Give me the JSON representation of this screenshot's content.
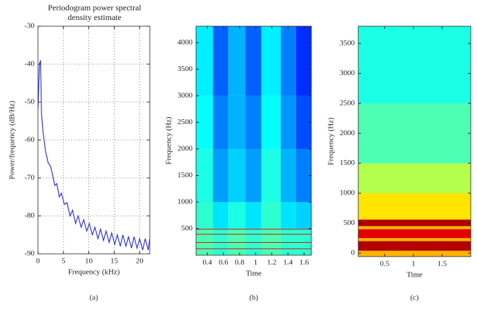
{
  "chart_data": [
    {
      "type": "line",
      "title": "Periodogram power spectral density estimate",
      "xlabel": "Frequency (kHz)",
      "ylabel": "Power/frequency (dB/Hz)",
      "caption": "(a)",
      "xlim": [
        0,
        22
      ],
      "xticks": [
        0,
        5,
        10,
        15,
        20
      ],
      "ylim": [
        -90,
        -30
      ],
      "yticks": [
        -90,
        -80,
        -70,
        -60,
        -50,
        -40,
        -30
      ],
      "grid": true,
      "color": "#1f1fd0",
      "x": [
        0,
        0.3,
        0.5,
        0.7,
        1.0,
        1.5,
        2,
        2.5,
        3,
        3.3,
        3.7,
        4.2,
        4.6,
        5.2,
        5.7,
        6.3,
        6.8,
        7.4,
        7.9,
        8.5,
        9,
        9.6,
        10.1,
        10.7,
        11.2,
        11.8,
        12.3,
        12.9,
        13.4,
        14,
        14.5,
        15.1,
        15.6,
        16.2,
        16.7,
        17.3,
        17.8,
        18.4,
        18.9,
        19.5,
        20,
        20.6,
        21.1,
        21.7,
        22
      ],
      "values": [
        -52,
        -40,
        -39,
        -53,
        -58,
        -63,
        -66,
        -67,
        -70,
        -72,
        -71.5,
        -75,
        -74,
        -77,
        -76.5,
        -80,
        -78.5,
        -82,
        -80,
        -83,
        -81,
        -84,
        -82,
        -85,
        -83,
        -86,
        -83.5,
        -86.5,
        -84,
        -87,
        -84.5,
        -87.5,
        -85,
        -88,
        -85,
        -88,
        -85.5,
        -88.5,
        -85.5,
        -88.5,
        -86,
        -89,
        -86,
        -89,
        -86
      ]
    },
    {
      "type": "heatmap",
      "xlabel": "Time",
      "ylabel": "Frequency (Hz)",
      "caption": "(b)",
      "xlim": [
        0.26,
        1.69
      ],
      "xticks": [
        0.4,
        0.6,
        0.8,
        1,
        1.2,
        1.4,
        1.6
      ],
      "ylim": [
        0,
        4310
      ],
      "yticks": [
        500,
        1000,
        1500,
        2000,
        2500,
        3000,
        3500,
        4000
      ],
      "x_edges": [
        0.26,
        0.47,
        0.66,
        0.87,
        1.07,
        1.31,
        1.5,
        1.69
      ],
      "y_edges": [
        0,
        500,
        1000,
        2000,
        3000,
        4310
      ],
      "z": [
        [
          0.45,
          0.42,
          0.45,
          0.42,
          0.45,
          0.42,
          0.42
        ],
        [
          0.42,
          0.35,
          0.4,
          0.35,
          0.42,
          0.35,
          0.33
        ],
        [
          0.4,
          0.28,
          0.33,
          0.28,
          0.4,
          0.3,
          0.25
        ],
        [
          0.38,
          0.25,
          0.3,
          0.25,
          0.38,
          0.27,
          0.2
        ],
        [
          0.36,
          0.22,
          0.3,
          0.22,
          0.36,
          0.25,
          0.17
        ]
      ],
      "hlines": [
        490,
        395,
        240,
        120
      ],
      "hline_color": "#d01010"
    },
    {
      "type": "heatmap",
      "xlabel": "Time",
      "ylabel": "Frequency (Hz)",
      "caption": "(c)",
      "xlim": [
        0.04,
        2.0
      ],
      "xticks": [
        0.5,
        1,
        1.5
      ],
      "ylim": [
        -58,
        3788
      ],
      "yticks": [
        0,
        500,
        1000,
        1500,
        2000,
        2500,
        3000,
        3500
      ],
      "x_edges": [
        0.04,
        2.0
      ],
      "y_edges": [
        -58,
        40,
        200,
        250,
        400,
        450,
        560,
        1000,
        1500,
        2500,
        3788
      ],
      "z": [
        [
          0.7
        ],
        [
          0.95
        ],
        [
          0.7
        ],
        [
          0.9
        ],
        [
          0.7
        ],
        [
          0.95
        ],
        [
          0.65
        ],
        [
          0.55
        ],
        [
          0.45
        ],
        [
          0.4
        ]
      ]
    }
  ]
}
